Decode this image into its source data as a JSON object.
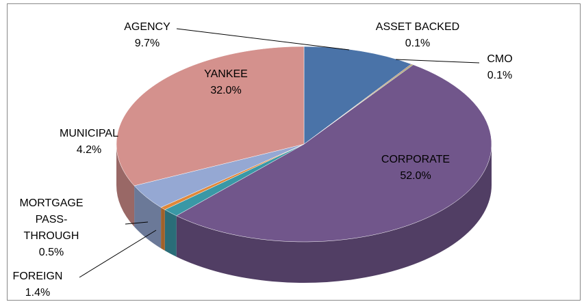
{
  "chart_data": {
    "type": "pie",
    "categories": [
      "AGENCY",
      "ASSET BACKED",
      "CMO",
      "CORPORATE",
      "FOREIGN",
      "MORTGAGE PASS-THROUGH",
      "MUNICIPAL",
      "YANKEE"
    ],
    "values": [
      9.7,
      0.1,
      0.1,
      52.0,
      1.4,
      0.5,
      4.2,
      32.0
    ],
    "value_labels": [
      "9.7%",
      "0.1%",
      "0.1%",
      "52.0%",
      "1.4%",
      "0.5%",
      "4.2%",
      "32.0%"
    ],
    "colors": [
      "#4a73a8",
      "#a65a3a",
      "#7f9a42",
      "#71568b",
      "#3a98a6",
      "#e0883a",
      "#95a8d3",
      "#d4918d"
    ]
  }
}
